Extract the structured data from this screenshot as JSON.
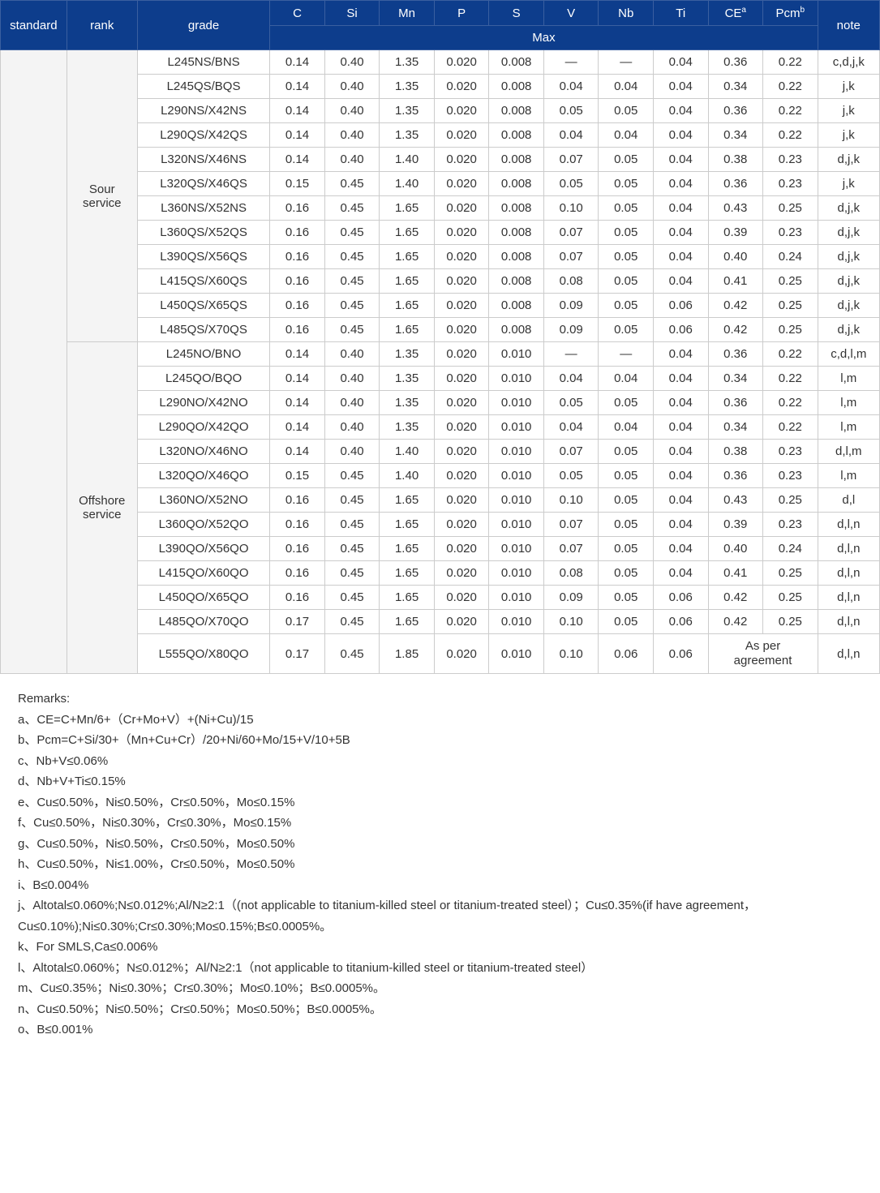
{
  "header": {
    "standard": "standard",
    "rank": "rank",
    "grade": "grade",
    "cols": [
      "C",
      "Si",
      "Mn",
      "P",
      "S",
      "V",
      "Nb",
      "Ti"
    ],
    "ce": "CE",
    "ce_sup": "a",
    "pcm": "Pcm",
    "pcm_sup": "b",
    "note": "note",
    "max": "Max"
  },
  "groups": [
    {
      "rank": "Sour\nservice",
      "rows": [
        {
          "grade": "L245NS/BNS",
          "c": "0.14",
          "si": "0.40",
          "mn": "1.35",
          "p": "0.020",
          "s": "0.008",
          "v": "—",
          "nb": "—",
          "ti": "0.04",
          "ce": "0.36",
          "pcm": "0.22",
          "note": "c,d,j,k"
        },
        {
          "grade": "L245QS/BQS",
          "c": "0.14",
          "si": "0.40",
          "mn": "1.35",
          "p": "0.020",
          "s": "0.008",
          "v": "0.04",
          "nb": "0.04",
          "ti": "0.04",
          "ce": "0.34",
          "pcm": "0.22",
          "note": "j,k"
        },
        {
          "grade": "L290NS/X42NS",
          "c": "0.14",
          "si": "0.40",
          "mn": "1.35",
          "p": "0.020",
          "s": "0.008",
          "v": "0.05",
          "nb": "0.05",
          "ti": "0.04",
          "ce": "0.36",
          "pcm": "0.22",
          "note": "j,k"
        },
        {
          "grade": "L290QS/X42QS",
          "c": "0.14",
          "si": "0.40",
          "mn": "1.35",
          "p": "0.020",
          "s": "0.008",
          "v": "0.04",
          "nb": "0.04",
          "ti": "0.04",
          "ce": "0.34",
          "pcm": "0.22",
          "note": "j,k"
        },
        {
          "grade": "L320NS/X46NS",
          "c": "0.14",
          "si": "0.40",
          "mn": "1.40",
          "p": "0.020",
          "s": "0.008",
          "v": "0.07",
          "nb": "0.05",
          "ti": "0.04",
          "ce": "0.38",
          "pcm": "0.23",
          "note": "d,j,k"
        },
        {
          "grade": "L320QS/X46QS",
          "c": "0.15",
          "si": "0.45",
          "mn": "1.40",
          "p": "0.020",
          "s": "0.008",
          "v": "0.05",
          "nb": "0.05",
          "ti": "0.04",
          "ce": "0.36",
          "pcm": "0.23",
          "note": "j,k"
        },
        {
          "grade": "L360NS/X52NS",
          "c": "0.16",
          "si": "0.45",
          "mn": "1.65",
          "p": "0.020",
          "s": "0.008",
          "v": "0.10",
          "nb": "0.05",
          "ti": "0.04",
          "ce": "0.43",
          "pcm": "0.25",
          "note": "d,j,k"
        },
        {
          "grade": "L360QS/X52QS",
          "c": "0.16",
          "si": "0.45",
          "mn": "1.65",
          "p": "0.020",
          "s": "0.008",
          "v": "0.07",
          "nb": "0.05",
          "ti": "0.04",
          "ce": "0.39",
          "pcm": "0.23",
          "note": "d,j,k"
        },
        {
          "grade": "L390QS/X56QS",
          "c": "0.16",
          "si": "0.45",
          "mn": "1.65",
          "p": "0.020",
          "s": "0.008",
          "v": "0.07",
          "nb": "0.05",
          "ti": "0.04",
          "ce": "0.40",
          "pcm": "0.24",
          "note": "d,j,k"
        },
        {
          "grade": "L415QS/X60QS",
          "c": "0.16",
          "si": "0.45",
          "mn": "1.65",
          "p": "0.020",
          "s": "0.008",
          "v": "0.08",
          "nb": "0.05",
          "ti": "0.04",
          "ce": "0.41",
          "pcm": "0.25",
          "note": "d,j,k"
        },
        {
          "grade": "L450QS/X65QS",
          "c": "0.16",
          "si": "0.45",
          "mn": "1.65",
          "p": "0.020",
          "s": "0.008",
          "v": "0.09",
          "nb": "0.05",
          "ti": "0.06",
          "ce": "0.42",
          "pcm": "0.25",
          "note": "d,j,k"
        },
        {
          "grade": "L485QS/X70QS",
          "c": "0.16",
          "si": "0.45",
          "mn": "1.65",
          "p": "0.020",
          "s": "0.008",
          "v": "0.09",
          "nb": "0.05",
          "ti": "0.06",
          "ce": "0.42",
          "pcm": "0.25",
          "note": "d,j,k"
        }
      ]
    },
    {
      "rank": "Offshore\nservice",
      "rows": [
        {
          "grade": "L245NO/BNO",
          "c": "0.14",
          "si": "0.40",
          "mn": "1.35",
          "p": "0.020",
          "s": "0.010",
          "v": "—",
          "nb": "—",
          "ti": "0.04",
          "ce": "0.36",
          "pcm": "0.22",
          "note": "c,d,l,m"
        },
        {
          "grade": "L245QO/BQO",
          "c": "0.14",
          "si": "0.40",
          "mn": "1.35",
          "p": "0.020",
          "s": "0.010",
          "v": "0.04",
          "nb": "0.04",
          "ti": "0.04",
          "ce": "0.34",
          "pcm": "0.22",
          "note": "l,m"
        },
        {
          "grade": "L290NO/X42NO",
          "c": "0.14",
          "si": "0.40",
          "mn": "1.35",
          "p": "0.020",
          "s": "0.010",
          "v": "0.05",
          "nb": "0.05",
          "ti": "0.04",
          "ce": "0.36",
          "pcm": "0.22",
          "note": "l,m"
        },
        {
          "grade": "L290QO/X42QO",
          "c": "0.14",
          "si": "0.40",
          "mn": "1.35",
          "p": "0.020",
          "s": "0.010",
          "v": "0.04",
          "nb": "0.04",
          "ti": "0.04",
          "ce": "0.34",
          "pcm": "0.22",
          "note": "l,m"
        },
        {
          "grade": "L320NO/X46NO",
          "c": "0.14",
          "si": "0.40",
          "mn": "1.40",
          "p": "0.020",
          "s": "0.010",
          "v": "0.07",
          "nb": "0.05",
          "ti": "0.04",
          "ce": "0.38",
          "pcm": "0.23",
          "note": "d,l,m"
        },
        {
          "grade": "L320QO/X46QO",
          "c": "0.15",
          "si": "0.45",
          "mn": "1.40",
          "p": "0.020",
          "s": "0.010",
          "v": "0.05",
          "nb": "0.05",
          "ti": "0.04",
          "ce": "0.36",
          "pcm": "0.23",
          "note": "l,m"
        },
        {
          "grade": "L360NO/X52NO",
          "c": "0.16",
          "si": "0.45",
          "mn": "1.65",
          "p": "0.020",
          "s": "0.010",
          "v": "0.10",
          "nb": "0.05",
          "ti": "0.04",
          "ce": "0.43",
          "pcm": "0.25",
          "note": "d,l"
        },
        {
          "grade": "L360QO/X52QO",
          "c": "0.16",
          "si": "0.45",
          "mn": "1.65",
          "p": "0.020",
          "s": "0.010",
          "v": "0.07",
          "nb": "0.05",
          "ti": "0.04",
          "ce": "0.39",
          "pcm": "0.23",
          "note": "d,l,n"
        },
        {
          "grade": "L390QO/X56QO",
          "c": "0.16",
          "si": "0.45",
          "mn": "1.65",
          "p": "0.020",
          "s": "0.010",
          "v": "0.07",
          "nb": "0.05",
          "ti": "0.04",
          "ce": "0.40",
          "pcm": "0.24",
          "note": "d,l,n"
        },
        {
          "grade": "L415QO/X60QO",
          "c": "0.16",
          "si": "0.45",
          "mn": "1.65",
          "p": "0.020",
          "s": "0.010",
          "v": "0.08",
          "nb": "0.05",
          "ti": "0.04",
          "ce": "0.41",
          "pcm": "0.25",
          "note": "d,l,n"
        },
        {
          "grade": "L450QO/X65QO",
          "c": "0.16",
          "si": "0.45",
          "mn": "1.65",
          "p": "0.020",
          "s": "0.010",
          "v": "0.09",
          "nb": "0.05",
          "ti": "0.06",
          "ce": "0.42",
          "pcm": "0.25",
          "note": "d,l,n"
        },
        {
          "grade": "L485QO/X70QO",
          "c": "0.17",
          "si": "0.45",
          "mn": "1.65",
          "p": "0.020",
          "s": "0.010",
          "v": "0.10",
          "nb": "0.05",
          "ti": "0.06",
          "ce": "0.42",
          "pcm": "0.25",
          "note": "d,l,n"
        },
        {
          "grade": "L555QO/X80QO",
          "c": "0.17",
          "si": "0.45",
          "mn": "1.85",
          "p": "0.020",
          "s": "0.010",
          "v": "0.10",
          "nb": "0.06",
          "ti": "0.06",
          "ce": "As per\nagreement",
          "pcm": "",
          "note": "d,l,n",
          "merge_ce_pcm": true
        }
      ]
    }
  ],
  "remarks": {
    "title": "Remarks:",
    "lines": [
      "a、CE=C+Mn/6+（Cr+Mo+V）+(Ni+Cu)/15",
      "b、Pcm=C+Si/30+（Mn+Cu+Cr）/20+Ni/60+Mo/15+V/10+5B",
      "c、Nb+V≤0.06%",
      "d、Nb+V+Ti≤0.15%",
      "e、Cu≤0.50%，Ni≤0.50%，Cr≤0.50%，Mo≤0.15%",
      "f、Cu≤0.50%，Ni≤0.30%，Cr≤0.30%，Mo≤0.15%",
      "g、Cu≤0.50%，Ni≤0.50%，Cr≤0.50%，Mo≤0.50%",
      "h、Cu≤0.50%，Ni≤1.00%，Cr≤0.50%，Mo≤0.50%",
      "i、B≤0.004%",
      "j、Altotal≤0.060%;N≤0.012%;Al/N≥2:1（(not applicable to titanium-killed steel or titanium-treated steel）；Cu≤0.35%(if have agreement，Cu≤0.10%);Ni≤0.30%;Cr≤0.30%;Mo≤0.15%;B≤0.0005%。",
      "k、For SMLS,Ca≤0.006%",
      "l、Altotal≤0.060%；N≤0.012%；Al/N≥2:1（not applicable to titanium-killed steel or titanium-treated steel）",
      "m、Cu≤0.35%；Ni≤0.30%；Cr≤0.30%；Mo≤0.10%；B≤0.0005%。",
      "n、Cu≤0.50%；Ni≤0.50%；Cr≤0.50%；Mo≤0.50%；B≤0.0005%。",
      "o、B≤0.001%"
    ]
  },
  "style": {
    "header_bg": "#0d3d8c",
    "header_fg": "#ffffff",
    "border": "#cccccc",
    "rank_bg": "#f4f4f4",
    "col_widths": {
      "standard": 75,
      "rank": 80,
      "grade": 150,
      "num": 62,
      "note": 70
    }
  }
}
